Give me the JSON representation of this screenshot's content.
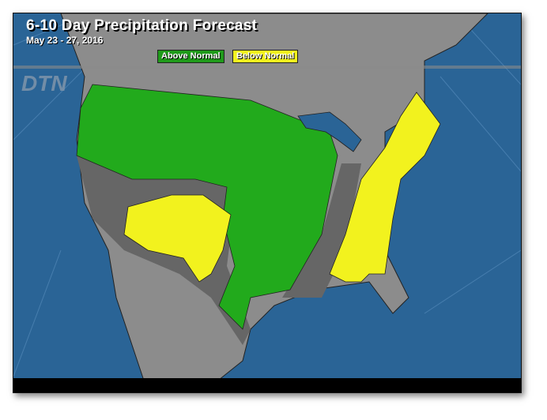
{
  "title": "6-10 Day Precipitation Forecast",
  "date_range": "May 23 - 27, 2016",
  "legend": [
    {
      "label": "Above Normal",
      "color": "#1f9a1a"
    },
    {
      "label": "Below Normal",
      "color": "#f2f21e"
    }
  ],
  "logo": "DTN",
  "colors": {
    "ocean": "#2a6496",
    "land": "#8c8c8c",
    "near_normal": "#666666",
    "above": "#22aa1c",
    "below": "#f2f21e"
  }
}
